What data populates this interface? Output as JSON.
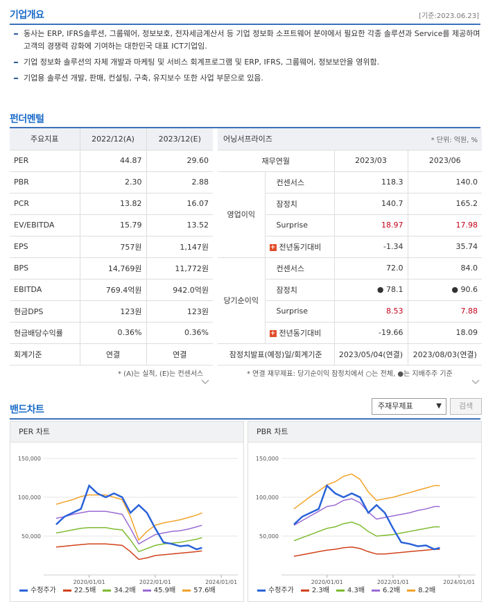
{
  "overview": {
    "title": "기업개요",
    "basedate": "[기준:2023.06.23]",
    "items": [
      "동사는 ERP, IFRS솔루션, 그룹웨어, 정보보호, 전자세금계산서 등 기업 정보화 소프트웨어 분야에서 필요한 각종 솔루션과 Service를 제공하며 고객의 경쟁력 강화에 기여하는 대한민국 대표 ICT기업임.",
      "기업 정보화 솔루션의 자체 개발과 마케팅 및 서비스 회계프로그램 및 ERP, IFRS, 그룹웨어, 정보보안을 영위함.",
      "기업용 솔루션 개발, 판매, 컨설팅, 구축, 유지보수 또한 사업 부문으로 있음."
    ]
  },
  "fundamental": {
    "title": "펀더멘털",
    "headers": [
      "주요지표",
      "2022/12(A)",
      "2023/12(E)"
    ],
    "rows": [
      [
        "PER",
        "44.87",
        "29.60"
      ],
      [
        "PBR",
        "2.30",
        "2.88"
      ],
      [
        "PCR",
        "13.82",
        "16.07"
      ],
      [
        "EV/EBITDA",
        "15.79",
        "13.52"
      ],
      [
        "EPS",
        "757원",
        "1,147원"
      ],
      [
        "BPS",
        "14,769원",
        "11,772원"
      ],
      [
        "EBITDA",
        "769.4억원",
        "942.0억원"
      ],
      [
        "현금DPS",
        "123원",
        "123원"
      ],
      [
        "현금배당수익률",
        "0.36%",
        "0.36%"
      ],
      [
        "회계기준",
        "연결",
        "연결"
      ]
    ],
    "note": "* (A)는 실적, (E)는 컨센서스"
  },
  "earnings": {
    "title": "어닝서프라이즈",
    "unit": "* 단위: 억원, %",
    "headers": [
      "재무연월",
      "2023/03",
      "2023/06"
    ],
    "op_label": "영업이익",
    "net_label": "당기순이익",
    "op_rows": [
      [
        "컨센서스",
        "118.3",
        "140.0"
      ],
      [
        "잠정치",
        "140.7",
        "165.2"
      ],
      [
        "Surprise",
        "18.97",
        "17.98"
      ],
      [
        "전년동기대비",
        "-1.34",
        "35.74"
      ]
    ],
    "net_rows": [
      [
        "컨센서스",
        "72.0",
        "84.0"
      ],
      [
        "잠정치",
        "● 78.1",
        "● 90.6"
      ],
      [
        "Surprise",
        "8.53",
        "7.88"
      ],
      [
        "전년동기대비",
        "-19.66",
        "18.09"
      ]
    ],
    "footer": [
      "잠정치발표(예정)일/회계기준",
      "2023/05/04(연결)",
      "2023/08/03(연결)"
    ],
    "note": "* 연결 재무제표: 당기순이익 잠정치에서 ○는 전체, ●는 지배주주 기준"
  },
  "band": {
    "title": "밴드차트",
    "select_value": "주재무제표",
    "search_label": "검색",
    "per_title": "PER 차트",
    "pbr_title": "PBR 차트"
  },
  "chart_data": [
    {
      "type": "line",
      "title": "PER 차트",
      "x": [
        "2019/01",
        "2019/04",
        "2019/07",
        "2019/10",
        "2020/01",
        "2020/04",
        "2020/07",
        "2020/10",
        "2021/01",
        "2021/04",
        "2021/07",
        "2021/10",
        "2022/01",
        "2022/04",
        "2022/07",
        "2022/10",
        "2023/01",
        "2023/04",
        "2023/06"
      ],
      "xticks": [
        "2020/01/01",
        "2022/01/01",
        "2024/01/01"
      ],
      "ylim": [
        0,
        150000
      ],
      "yticks": [
        "50,000",
        "100,000",
        "150,000"
      ],
      "series": [
        {
          "name": "수정주가",
          "color": "#2962d9",
          "values": [
            65000,
            75000,
            80000,
            85000,
            115000,
            105000,
            100000,
            105000,
            100000,
            80000,
            90000,
            80000,
            60000,
            42000,
            40000,
            37000,
            38000,
            33000,
            35000
          ]
        },
        {
          "name": "22.5배",
          "color": "#d0421b",
          "values": [
            36000,
            37000,
            38000,
            39000,
            40000,
            40000,
            40000,
            39000,
            38000,
            30000,
            20000,
            22000,
            25000,
            26000,
            27000,
            28000,
            29000,
            30000,
            31000
          ]
        },
        {
          "name": "34.2배",
          "color": "#7dba2f",
          "values": [
            54000,
            56000,
            58000,
            60000,
            61000,
            61000,
            61000,
            59000,
            58000,
            45000,
            30000,
            34000,
            38000,
            40000,
            41000,
            42000,
            44000,
            46000,
            48000
          ]
        },
        {
          "name": "45.9배",
          "color": "#9a6bd4",
          "values": [
            73000,
            75000,
            78000,
            80000,
            82000,
            82000,
            82000,
            80000,
            78000,
            60000,
            40000,
            46000,
            52000,
            54000,
            56000,
            57000,
            59000,
            62000,
            64000
          ]
        },
        {
          "name": "57.6배",
          "color": "#f2a22a",
          "values": [
            91000,
            94000,
            97000,
            101000,
            103000,
            103000,
            103000,
            100000,
            97000,
            75000,
            45000,
            56000,
            64000,
            67000,
            69000,
            71000,
            74000,
            77000,
            80000
          ]
        }
      ]
    },
    {
      "type": "line",
      "title": "PBR 차트",
      "x": [
        "2019/01",
        "2019/04",
        "2019/07",
        "2019/10",
        "2020/01",
        "2020/04",
        "2020/07",
        "2020/10",
        "2021/01",
        "2021/04",
        "2021/07",
        "2021/10",
        "2022/01",
        "2022/04",
        "2022/07",
        "2022/10",
        "2023/01",
        "2023/04",
        "2023/06"
      ],
      "xticks": [
        "2020/01/01",
        "2022/01/01",
        "2024/01/01"
      ],
      "ylim": [
        0,
        150000
      ],
      "yticks": [
        "50,000",
        "100,000",
        "150,000"
      ],
      "series": [
        {
          "name": "수정주가",
          "color": "#2962d9",
          "values": [
            65000,
            75000,
            80000,
            85000,
            115000,
            105000,
            100000,
            105000,
            100000,
            80000,
            90000,
            80000,
            60000,
            42000,
            40000,
            37000,
            38000,
            33000,
            35000
          ]
        },
        {
          "name": "2.3배",
          "color": "#d0421b",
          "values": [
            24000,
            26000,
            28000,
            30000,
            32000,
            33000,
            35000,
            36000,
            34000,
            30000,
            27000,
            27000,
            28000,
            29000,
            30000,
            31000,
            32000,
            33000,
            33000
          ]
        },
        {
          "name": "4.3배",
          "color": "#7dba2f",
          "values": [
            44000,
            48000,
            52000,
            56000,
            60000,
            62000,
            66000,
            68000,
            64000,
            56000,
            50000,
            51000,
            52000,
            54000,
            56000,
            58000,
            60000,
            62000,
            62000
          ]
        },
        {
          "name": "6.2배",
          "color": "#9a6bd4",
          "values": [
            64000,
            70000,
            76000,
            82000,
            88000,
            90000,
            96000,
            98000,
            93000,
            81000,
            72000,
            74000,
            76000,
            78000,
            80000,
            83000,
            85000,
            88000,
            88000
          ]
        },
        {
          "name": "8.2배",
          "color": "#f2a22a",
          "values": [
            85000,
            93000,
            101000,
            108000,
            116000,
            120000,
            127000,
            130000,
            123000,
            107000,
            96000,
            98000,
            100000,
            103000,
            106000,
            109000,
            112000,
            115000,
            115000
          ]
        }
      ]
    }
  ]
}
